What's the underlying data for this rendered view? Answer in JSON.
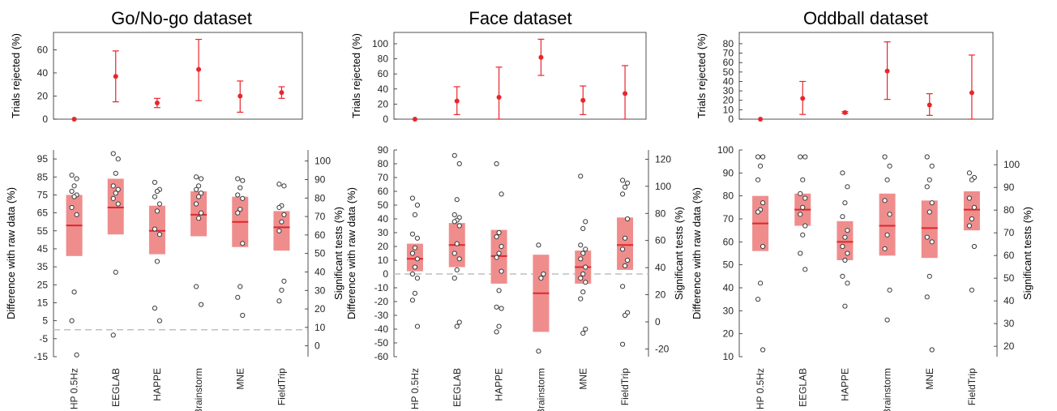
{
  "colors": {
    "accent": "#e8262b",
    "box_fill": "#ef8d8d",
    "median": "#e0262b",
    "point_edge": "#3a3a3a",
    "baseline": "#bfbfbf",
    "axis": "#262626"
  },
  "categories": [
    "HP 0.5Hz",
    "EEGLAB",
    "HAPPE",
    "Brainstorm",
    "MNE",
    "FieldTrip"
  ],
  "chart_data": [
    {
      "id": "gonogo",
      "title": "Go/No-go dataset",
      "top": {
        "type": "scatter",
        "ylabel": "Trials rejected (%)",
        "ylim": [
          0,
          75
        ],
        "yticks": [
          0,
          20,
          40,
          60
        ],
        "points": [
          {
            "mean": 0,
            "lo": 0,
            "hi": 0
          },
          {
            "mean": 37,
            "lo": 15,
            "hi": 59
          },
          {
            "mean": 14,
            "lo": 10,
            "hi": 18
          },
          {
            "mean": 43,
            "lo": 16,
            "hi": 69
          },
          {
            "mean": 20,
            "lo": 6,
            "hi": 33
          },
          {
            "mean": 23,
            "lo": 18,
            "hi": 28
          }
        ]
      },
      "bottom": {
        "type": "box",
        "ylabel": "Difference with raw data (%)",
        "ylabel_right": "Significant tests (%)",
        "ylim": [
          -15,
          100
        ],
        "yticks": [
          -15,
          -5,
          5,
          15,
          25,
          35,
          45,
          55,
          65,
          75,
          85,
          95
        ],
        "right_ylim": [
          -5.85,
          106
        ],
        "right_yticks": [
          0,
          10,
          20,
          30,
          40,
          50,
          60,
          70,
          80,
          90,
          100
        ],
        "baseline": 0,
        "boxes": [
          {
            "q1": 41,
            "med": 58,
            "q3": 75
          },
          {
            "q1": 53,
            "med": 68,
            "q3": 84
          },
          {
            "q1": 42,
            "med": 55,
            "q3": 69
          },
          {
            "q1": 52,
            "med": 64,
            "q3": 77
          },
          {
            "q1": 46,
            "med": 60,
            "q3": 74
          },
          {
            "q1": 44,
            "med": 57,
            "q3": 66
          }
        ],
        "points": [
          [
            86,
            84,
            80,
            77,
            75,
            74,
            68,
            64,
            21,
            5,
            -14
          ],
          [
            98,
            95,
            87,
            80,
            78,
            76,
            73,
            70,
            32,
            -3
          ],
          [
            82,
            78,
            77,
            74,
            70,
            66,
            56,
            53,
            38,
            12,
            5
          ],
          [
            85,
            84,
            80,
            78,
            76,
            74,
            70,
            65,
            62,
            24,
            14
          ],
          [
            84,
            83,
            79,
            75,
            73,
            67,
            65,
            48,
            24,
            18,
            8
          ],
          [
            81,
            80,
            69,
            68,
            64,
            60,
            55,
            27,
            22,
            16
          ]
        ]
      }
    },
    {
      "id": "face",
      "title": "Face dataset",
      "top": {
        "type": "scatter",
        "ylabel": "Trials rejected (%)",
        "ylim": [
          0,
          115
        ],
        "yticks": [
          0,
          20,
          40,
          60,
          80,
          100
        ],
        "points": [
          {
            "mean": 0,
            "lo": 0,
            "hi": 0
          },
          {
            "mean": 24,
            "lo": 6,
            "hi": 43
          },
          {
            "mean": 29,
            "lo": 0,
            "hi": 69
          },
          {
            "mean": 82,
            "lo": 58,
            "hi": 106
          },
          {
            "mean": 25,
            "lo": 6,
            "hi": 44
          },
          {
            "mean": 34,
            "lo": 0,
            "hi": 71
          }
        ]
      },
      "bottom": {
        "type": "box",
        "ylabel": "Difference with raw data (%)",
        "ylabel_right": "Significant tests (%)",
        "ylim": [
          -60,
          90
        ],
        "yticks": [
          -60,
          -50,
          -40,
          -30,
          -20,
          -10,
          0,
          10,
          20,
          30,
          40,
          50,
          60,
          70,
          80,
          90
        ],
        "right_ylim": [
          -25.7,
          126.8
        ],
        "right_yticks": [
          -20,
          0,
          20,
          40,
          60,
          80,
          100,
          120
        ],
        "baseline": 0,
        "boxes": [
          {
            "q1": 2,
            "med": 11,
            "q3": 22
          },
          {
            "q1": 5,
            "med": 21,
            "q3": 37
          },
          {
            "q1": -7,
            "med": 13,
            "q3": 32
          },
          {
            "q1": -42,
            "med": -14,
            "q3": 14
          },
          {
            "q1": -7,
            "med": 5,
            "q3": 17
          },
          {
            "q1": 3,
            "med": 21,
            "q3": 41
          }
        ],
        "points": [
          [
            55,
            50,
            43,
            29,
            26,
            19,
            15,
            11,
            5,
            0,
            -3,
            -14,
            -19,
            -38
          ],
          [
            86,
            80,
            54,
            43,
            41,
            39,
            38,
            35,
            22,
            15,
            11,
            3,
            -3,
            -35,
            -38
          ],
          [
            80,
            58,
            30,
            27,
            20,
            15,
            12,
            2,
            -12,
            -24,
            -25,
            -38,
            -42
          ],
          [
            21,
            0,
            -3,
            -56
          ],
          [
            71,
            38,
            33,
            21,
            18,
            15,
            11,
            5,
            0,
            -3,
            -6,
            -13,
            -18,
            -40,
            -43
          ],
          [
            68,
            66,
            63,
            58,
            40,
            26,
            18,
            10,
            6,
            -9,
            -28,
            -30,
            -51
          ]
        ]
      }
    },
    {
      "id": "oddball",
      "title": "Oddball dataset",
      "top": {
        "type": "scatter",
        "ylabel": "Trials rejected (%)",
        "ylim": [
          0,
          92
        ],
        "yticks": [
          0,
          10,
          20,
          30,
          40,
          50,
          60,
          70,
          80
        ],
        "points": [
          {
            "mean": 0,
            "lo": 0,
            "hi": 0
          },
          {
            "mean": 22,
            "lo": 5,
            "hi": 40
          },
          {
            "mean": 7,
            "lo": 6,
            "hi": 8
          },
          {
            "mean": 51,
            "lo": 21,
            "hi": 82
          },
          {
            "mean": 15,
            "lo": 4,
            "hi": 27
          },
          {
            "mean": 28,
            "lo": 0,
            "hi": 68
          }
        ]
      },
      "bottom": {
        "type": "box",
        "ylabel": "Difference with raw data (%)",
        "ylabel_right": "Significant tests (%)",
        "ylim": [
          10,
          100
        ],
        "yticks": [
          10,
          20,
          30,
          40,
          50,
          60,
          70,
          80,
          90,
          100
        ],
        "right_ylim": [
          15.4,
          106.5
        ],
        "right_yticks": [
          20,
          30,
          40,
          50,
          60,
          70,
          80,
          90,
          100
        ],
        "baseline": null,
        "boxes": [
          {
            "q1": 56,
            "med": 68,
            "q3": 80
          },
          {
            "q1": 67,
            "med": 74,
            "q3": 81
          },
          {
            "q1": 52,
            "med": 60,
            "q3": 69
          },
          {
            "q1": 54,
            "med": 67,
            "q3": 81
          },
          {
            "q1": 53,
            "med": 66,
            "q3": 78
          },
          {
            "q1": 65,
            "med": 74,
            "q3": 82
          }
        ],
        "points": [
          [
            97,
            97,
            93,
            87,
            77,
            74,
            73,
            58,
            42,
            35,
            13
          ],
          [
            97,
            97,
            87,
            81,
            79,
            75,
            72,
            67,
            63,
            55,
            48
          ],
          [
            90,
            84,
            77,
            71,
            65,
            62,
            58,
            55,
            52,
            45,
            42,
            32
          ],
          [
            97,
            93,
            87,
            78,
            72,
            63,
            57,
            39,
            26
          ],
          [
            97,
            93,
            87,
            84,
            77,
            73,
            62,
            60,
            45,
            36,
            13
          ],
          [
            90,
            88,
            87,
            79,
            75,
            70,
            67,
            58,
            39
          ]
        ]
      }
    }
  ]
}
